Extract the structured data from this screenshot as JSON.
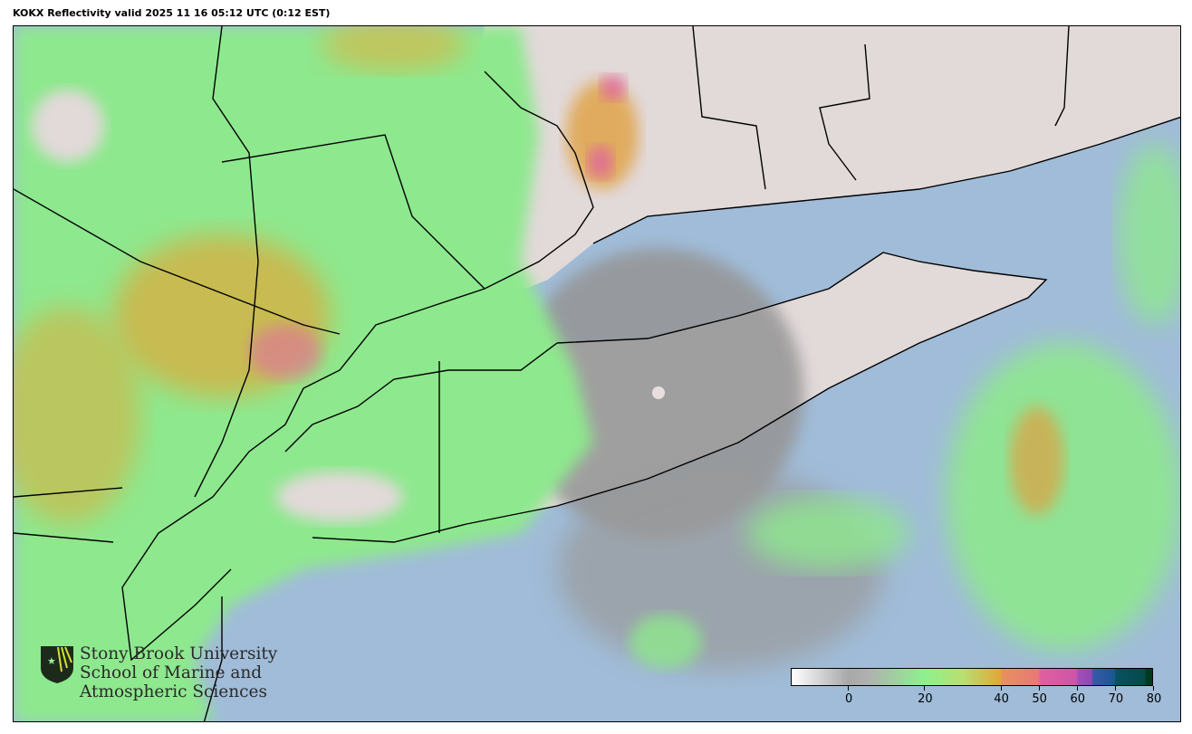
{
  "title": "KOKX Reflectivity valid 2025 11 16 05:12 UTC (0:12 EST)",
  "logo": {
    "lines": [
      "Stony Brook University",
      "School of Marine and",
      "Atmospheric Sciences"
    ]
  },
  "colors": {
    "ocean": "#a0bcd8",
    "land": "#e2d9d9",
    "weak_echo_green": "#8ee88e",
    "moderate_echo_orange": "#e0a83c",
    "strong_echo_pink": "#e0608c"
  },
  "colorbar": {
    "range": [
      -15,
      80
    ],
    "ticks": [
      {
        "value": 0,
        "label": "0"
      },
      {
        "value": 20,
        "label": "20"
      },
      {
        "value": 40,
        "label": "40"
      },
      {
        "value": 50,
        "label": "50"
      },
      {
        "value": 60,
        "label": "60"
      },
      {
        "value": 70,
        "label": "70"
      },
      {
        "value": 80,
        "label": "80"
      }
    ],
    "stops": [
      {
        "value": -15,
        "color": "#ffffff"
      },
      {
        "value": 0,
        "color": "#a8a8a8"
      },
      {
        "value": 5,
        "color": "#b0b0b0"
      },
      {
        "value": 20,
        "color": "#8ef08e"
      },
      {
        "value": 30,
        "color": "#b8e070"
      },
      {
        "value": 40,
        "color": "#e0a838"
      },
      {
        "value": 40.5,
        "color": "#e89060"
      },
      {
        "value": 50,
        "color": "#e87878"
      },
      {
        "value": 50.5,
        "color": "#e060a0"
      },
      {
        "value": 60,
        "color": "#cc55a8"
      },
      {
        "value": 60.5,
        "color": "#a050b8"
      },
      {
        "value": 64,
        "color": "#9048b0"
      },
      {
        "value": 64.5,
        "color": "#3858a8"
      },
      {
        "value": 70,
        "color": "#1a5890"
      },
      {
        "value": 70.5,
        "color": "#0a5060"
      },
      {
        "value": 78,
        "color": "#064a48"
      },
      {
        "value": 78.5,
        "color": "#003820"
      },
      {
        "value": 80,
        "color": "#003820"
      }
    ]
  }
}
